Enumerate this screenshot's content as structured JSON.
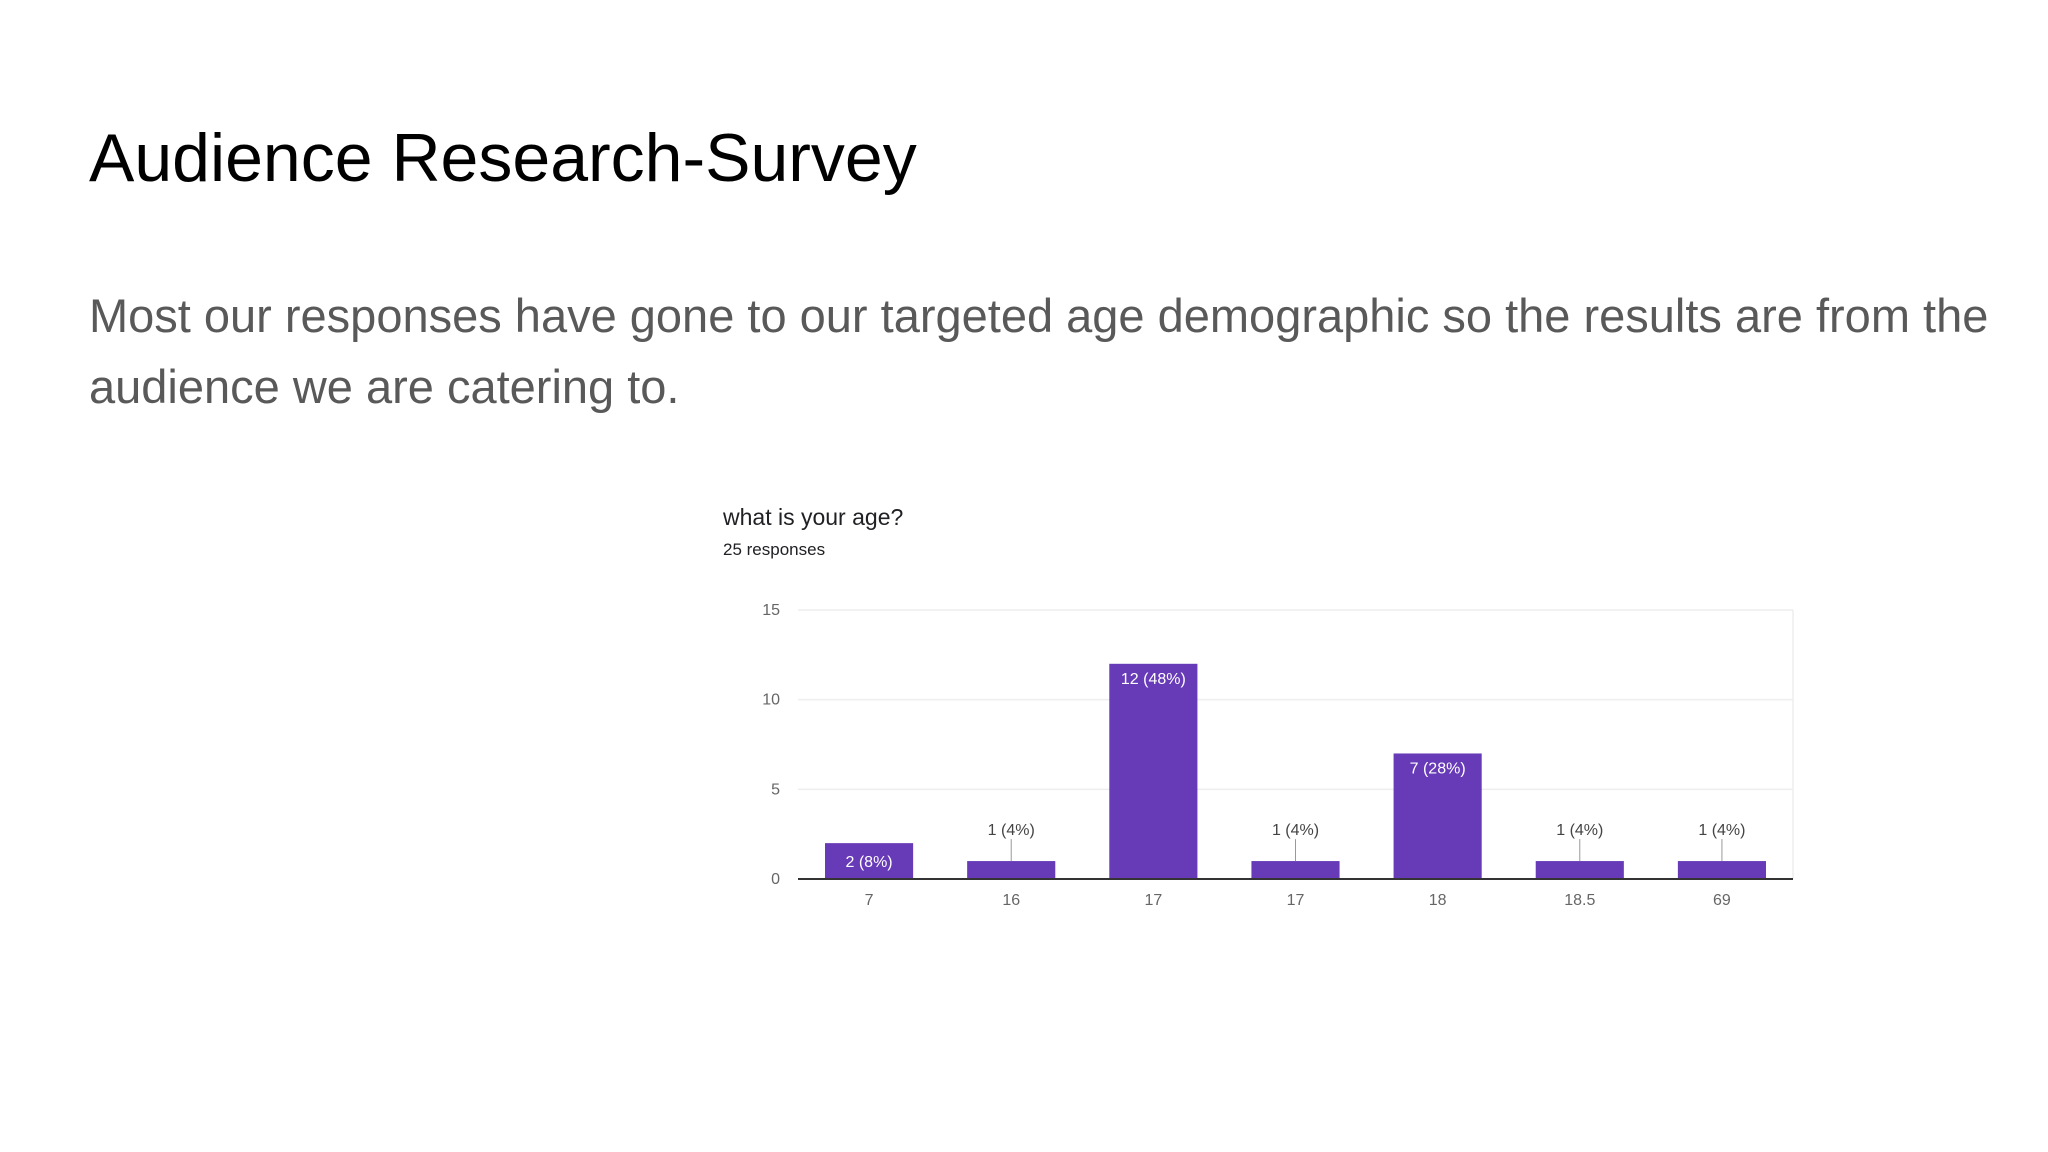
{
  "slide": {
    "title": "Audience Research-Survey",
    "body": "Most our responses have gone to our targeted age demographic so the results are from the audience we are catering to."
  },
  "colors": {
    "bar": "#673ab7",
    "inside_label": "#ffffff",
    "outside_label": "#444444",
    "axis_line": "#333333",
    "grid_line": "#eeeeee",
    "tick_label": "#666666"
  },
  "chart_data": {
    "type": "bar",
    "title": "what is your age?",
    "subtitle": "25 responses",
    "categories": [
      "7",
      "16",
      "17",
      "17",
      "18",
      "18.5",
      "69"
    ],
    "values": [
      2,
      1,
      12,
      1,
      7,
      1,
      1
    ],
    "data_labels": [
      "2 (8%)",
      "1 (4%)",
      "12 (48%)",
      "1 (4%)",
      "7 (28%)",
      "1 (4%)",
      "1 (4%)"
    ],
    "yticks": [
      0,
      5,
      10,
      15
    ],
    "ylim": [
      0,
      15
    ],
    "grid": true,
    "legend": "none"
  }
}
